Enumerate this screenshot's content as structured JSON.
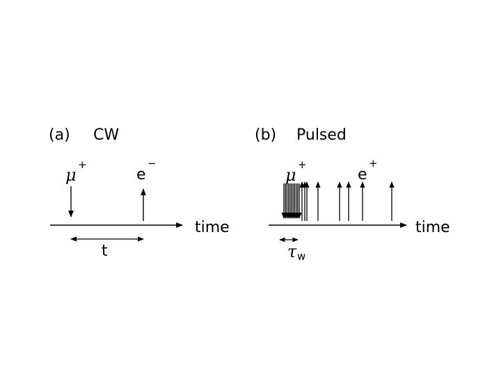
{
  "panel_a": {
    "label": "(a)",
    "title": "CW",
    "muon_symbol": "μ",
    "muon_charge": "+",
    "electron_symbol": "e",
    "electron_charge": "−",
    "axis_label": "time",
    "interval_label": "t"
  },
  "panel_b": {
    "label": "(b)",
    "title": "Pulsed",
    "muon_symbol": "μ",
    "muon_charge": "+",
    "positron_symbol": "e",
    "positron_charge": "+",
    "axis_label": "time",
    "width_symbol": "τ",
    "width_subscript": "w"
  },
  "colors": {
    "ink": "#000000",
    "background": "#ffffff"
  }
}
